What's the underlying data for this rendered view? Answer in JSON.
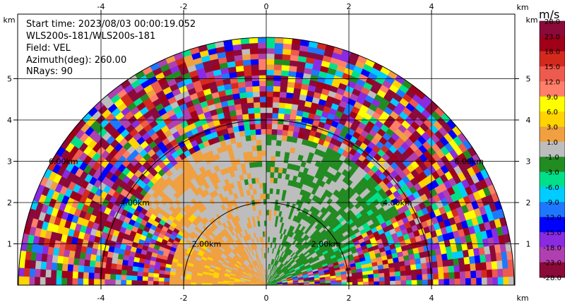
{
  "info": {
    "start_time": "Start time: 2023/08/03 00:00:19.052",
    "instrument": "WLS200s-181/WLS200s-181",
    "field": "Field: VEL",
    "azimuth": "Azimuth(deg): 260.00",
    "nrays": "NRays: 90"
  },
  "chart_data": {
    "type": "heatmap",
    "subtype": "polar-rhi",
    "xlabel": "km",
    "ylabel": "km",
    "xlim": [
      -6.0,
      6.0
    ],
    "ylim": [
      0,
      6.0
    ],
    "xticks": [
      "-4",
      "-2",
      "0",
      "2",
      "4"
    ],
    "yticks": [
      "1",
      "2",
      "3",
      "4",
      "5"
    ],
    "x_tick_values": [
      -4,
      -2,
      0,
      2,
      4
    ],
    "y_tick_values": [
      1,
      2,
      3,
      4,
      5
    ],
    "max_range_km": 6.0,
    "range_rings_km": [
      2.0,
      4.0,
      6.0
    ],
    "range_ring_labels": [
      "2.00km",
      "4.00km",
      "6.00km"
    ],
    "grid": true,
    "colorbar": {
      "unit": "m/s",
      "ticks": [
        "28.0",
        "23.0",
        "18.0",
        "15.0",
        "12.0",
        "9.0",
        "6.0",
        "3.0",
        "1.0",
        "-1.0",
        "-3.0",
        "-6.0",
        "-9.0",
        "-12.0",
        "-15.0",
        "-18.0",
        "-23.0",
        "-28.0"
      ],
      "bins": [
        {
          "lo": 23,
          "hi": 28,
          "color": "#8b0a3a"
        },
        {
          "lo": 18,
          "hi": 23,
          "color": "#a0001a"
        },
        {
          "lo": 15,
          "hi": 18,
          "color": "#d42a1e"
        },
        {
          "lo": 12,
          "hi": 15,
          "color": "#ee5a4d"
        },
        {
          "lo": 9,
          "hi": 12,
          "color": "#ff7f6a"
        },
        {
          "lo": 6,
          "hi": 9,
          "color": "#ffff00"
        },
        {
          "lo": 3,
          "hi": 6,
          "color": "#ffd400"
        },
        {
          "lo": 1,
          "hi": 3,
          "color": "#f0a040"
        },
        {
          "lo": -1,
          "hi": 1,
          "color": "#bdbdbd"
        },
        {
          "lo": -3,
          "hi": -1,
          "color": "#228b22"
        },
        {
          "lo": -6,
          "hi": -3,
          "color": "#00e08a"
        },
        {
          "lo": -9,
          "hi": -6,
          "color": "#00ccff"
        },
        {
          "lo": -12,
          "hi": -9,
          "color": "#1e78ff"
        },
        {
          "lo": -15,
          "hi": -12,
          "color": "#0000ff"
        },
        {
          "lo": -18,
          "hi": -15,
          "color": "#8a2be2"
        },
        {
          "lo": -23,
          "hi": -18,
          "color": "#b040b0"
        },
        {
          "lo": -28,
          "hi": -23,
          "color": "#8b0a3a"
        }
      ]
    },
    "regions_description_values": {
      "near_left_m_s": 2.0,
      "near_center_m_s": 0.0,
      "near_right_m_s": -2.0,
      "far_field": "noisy (random across full scale)"
    }
  }
}
